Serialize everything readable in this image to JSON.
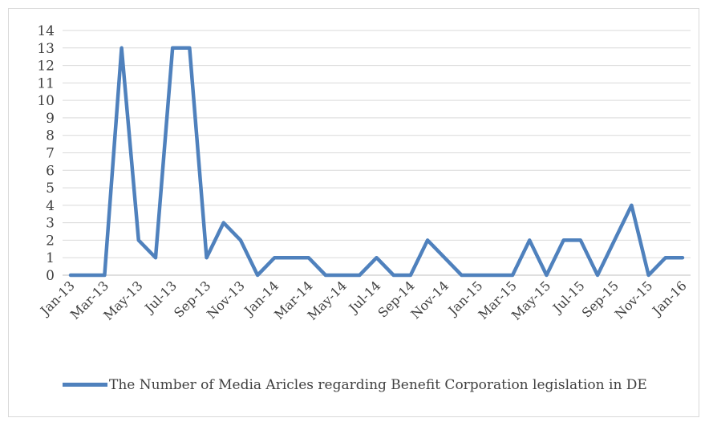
{
  "chart_data": {
    "type": "line",
    "title": "",
    "xlabel": "",
    "ylabel": "",
    "ylim": [
      0,
      14
    ],
    "y_ticks": [
      0,
      1,
      2,
      3,
      4,
      5,
      6,
      7,
      8,
      9,
      10,
      11,
      12,
      13,
      14
    ],
    "grid": true,
    "legend_position": "bottom",
    "x": [
      "Jan-13",
      "Feb-13",
      "Mar-13",
      "Apr-13",
      "May-13",
      "Jun-13",
      "Jul-13",
      "Aug-13",
      "Sep-13",
      "Oct-13",
      "Nov-13",
      "Dec-13",
      "Jan-14",
      "Feb-14",
      "Mar-14",
      "Apr-14",
      "May-14",
      "Jun-14",
      "Jul-14",
      "Aug-14",
      "Sep-14",
      "Oct-14",
      "Nov-14",
      "Dec-14",
      "Jan-15",
      "Feb-15",
      "Mar-15",
      "Apr-15",
      "May-15",
      "Jun-15",
      "Jul-15",
      "Aug-15",
      "Sep-15",
      "Oct-15",
      "Nov-15",
      "Dec-15",
      "Jan-16"
    ],
    "x_tick_labels": [
      "Jan-13",
      "Mar-13",
      "May-13",
      "Jul-13",
      "Sep-13",
      "Nov-13",
      "Jan-14",
      "Mar-14",
      "May-14",
      "Jul-14",
      "Sep-14",
      "Nov-14",
      "Jan-15",
      "Mar-15",
      "May-15",
      "Jul-15",
      "Sep-15",
      "Nov-15",
      "Jan-16"
    ],
    "series": [
      {
        "name": "The Number of Media Aricles regarding Benefit Corporation legislation in DE",
        "color": "#4f81bd",
        "values": [
          0,
          0,
          0,
          13,
          2,
          1,
          13,
          13,
          1,
          3,
          2,
          0,
          1,
          1,
          1,
          0,
          0,
          0,
          1,
          0,
          0,
          2,
          1,
          0,
          0,
          0,
          0,
          2,
          0,
          2,
          2,
          0,
          2,
          4,
          0,
          1,
          1
        ]
      }
    ]
  }
}
